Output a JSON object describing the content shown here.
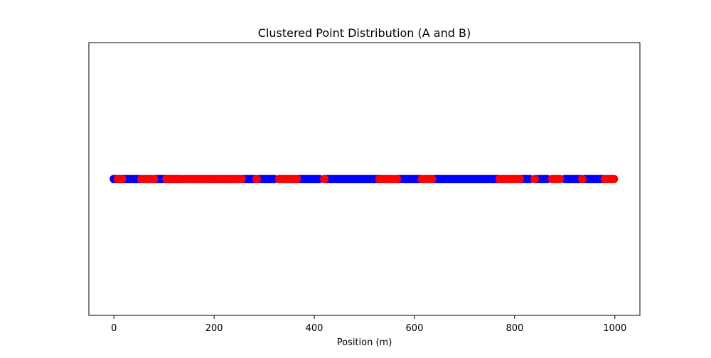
{
  "chart_data": {
    "type": "scatter",
    "title": "Clustered Point Distribution (A and B)",
    "xlabel": "Position (m)",
    "ylabel": "",
    "xlim": [
      -50,
      1050
    ],
    "ylim": [
      -1,
      1
    ],
    "x_ticks": [
      0,
      200,
      400,
      600,
      800,
      1000
    ],
    "x_tick_labels": [
      "0",
      "200",
      "400",
      "600",
      "800",
      "1000"
    ],
    "y_ticks_visible": false,
    "grid": false,
    "legend": "none",
    "series": [
      {
        "color": "#0000ff",
        "y": 0,
        "x": [
          0,
          5,
          10,
          15,
          20,
          25,
          30,
          35,
          40,
          45,
          50,
          85,
          90,
          95,
          100,
          105,
          110,
          115,
          120,
          125,
          130,
          200,
          210,
          230,
          260,
          265,
          270,
          275,
          280,
          290,
          295,
          300,
          305,
          310,
          315,
          320,
          350,
          370,
          375,
          380,
          385,
          390,
          395,
          400,
          405,
          410,
          425,
          430,
          435,
          440,
          445,
          450,
          455,
          460,
          465,
          470,
          475,
          480,
          485,
          490,
          495,
          500,
          505,
          510,
          515,
          520,
          525,
          530,
          570,
          575,
          580,
          585,
          590,
          595,
          600,
          605,
          610,
          640,
          645,
          650,
          655,
          660,
          665,
          670,
          675,
          680,
          685,
          690,
          695,
          700,
          705,
          710,
          715,
          720,
          725,
          730,
          735,
          740,
          745,
          750,
          755,
          760,
          765,
          810,
          815,
          820,
          825,
          830,
          845,
          850,
          855,
          860,
          865,
          900,
          905,
          910,
          915,
          920,
          925,
          930,
          940,
          945,
          950,
          955,
          960,
          965,
          970,
          975
        ]
      },
      {
        "color": "#ff0000",
        "y": 0,
        "x": [
          8,
          12,
          16,
          55,
          60,
          65,
          70,
          75,
          80,
          105,
          110,
          115,
          120,
          125,
          135,
          140,
          145,
          150,
          155,
          160,
          165,
          170,
          175,
          180,
          185,
          190,
          195,
          205,
          210,
          215,
          220,
          225,
          230,
          235,
          240,
          245,
          250,
          255,
          285,
          330,
          335,
          340,
          345,
          350,
          355,
          360,
          365,
          420,
          530,
          535,
          540,
          545,
          550,
          555,
          560,
          565,
          615,
          620,
          625,
          630,
          635,
          770,
          775,
          780,
          785,
          790,
          795,
          800,
          805,
          810,
          840,
          875,
          880,
          885,
          890,
          935,
          980,
          985,
          990,
          995,
          998
        ]
      }
    ]
  }
}
